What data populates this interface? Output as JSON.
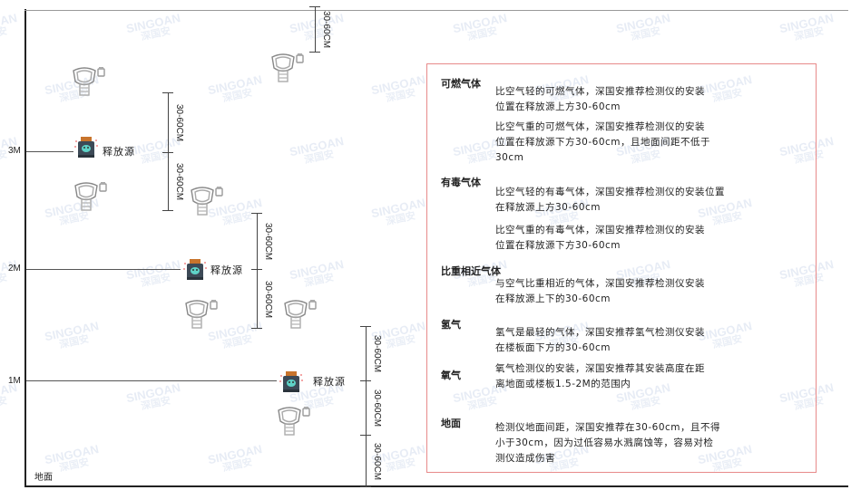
{
  "watermark": {
    "brand": "SINGOAN",
    "cn": "深国安"
  },
  "levels": [
    "3M",
    "2M",
    "1M"
  ],
  "ground_label": "地面",
  "source_label": "释放源",
  "dimension_label": "30-60CM",
  "notes": [
    {
      "heading": "可燃气体",
      "paras": [
        [
          "比空气轻的可燃气体，深国安推荐检测仪的安装",
          "位置在释放源上方30-60cm"
        ],
        [
          "比空气重的可燃气体，深国安推荐检测仪的安装",
          "位置在释放源下方30-60cm，且地面间距不低于",
          "30cm"
        ]
      ]
    },
    {
      "heading": "有毒气体",
      "paras": [
        [
          "比空气轻的有毒气体，深国安推荐检测仪的安装位置",
          "在释放源上方30-60cm"
        ],
        [
          "比空气重的有毒气体，深国安推荐检测仪的安装",
          "位置在释放源下方30-60cm"
        ]
      ]
    },
    {
      "heading": "比重相近气体",
      "paras": [
        [
          "与空气比重相近的气体，深国安推荐检测仪安装",
          "在释放源上下的30-60cm"
        ]
      ]
    },
    {
      "heading": "氢气",
      "paras": [
        [
          "氢气是最轻的气体，深国安推荐氢气检测仪安装",
          "在楼板面下方的30-60cm"
        ]
      ]
    },
    {
      "heading": "氧气",
      "paras": [
        [
          "氧气检测仪的安装，深国安推荐其安装高度在距",
          "离地面或楼板1.5-2M的范围内"
        ]
      ]
    },
    {
      "heading": "地面",
      "paras": [
        [
          "检测仪地面间距，深国安推荐在30-60cm，且不得",
          "小于30cm，因为过低容易水溅腐蚀等，容易对检",
          "测仪造成伤害"
        ]
      ]
    }
  ],
  "colors": {
    "box_border": "#e88a8a",
    "source_body": "#3d4a57",
    "source_cap": "#c8742c",
    "source_face": "#5fd3c8"
  }
}
